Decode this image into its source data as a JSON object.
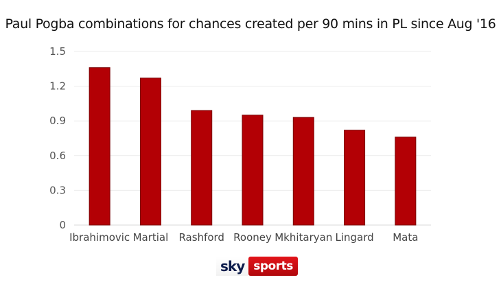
{
  "chart_data": {
    "type": "bar",
    "title": "Paul Pogba combinations for chances created per 90 mins in PL since Aug '16",
    "categories": [
      "Ibrahimovic",
      "Martial",
      "Rashford",
      "Rooney",
      "Mkhitaryan",
      "Lingard",
      "Mata"
    ],
    "values": [
      1.36,
      1.27,
      0.99,
      0.95,
      0.93,
      0.82,
      0.76
    ],
    "yticks": [
      "0",
      "0.3",
      "0.6",
      "0.9",
      "1.2",
      "1.5"
    ],
    "ylim": [
      0,
      1.5
    ],
    "xlabel": "",
    "ylabel": "",
    "grid": true,
    "bar_color": "#b30005",
    "bar_edge_color": "#7a0003"
  },
  "branding": {
    "sky": "sky",
    "sports": "sports"
  }
}
